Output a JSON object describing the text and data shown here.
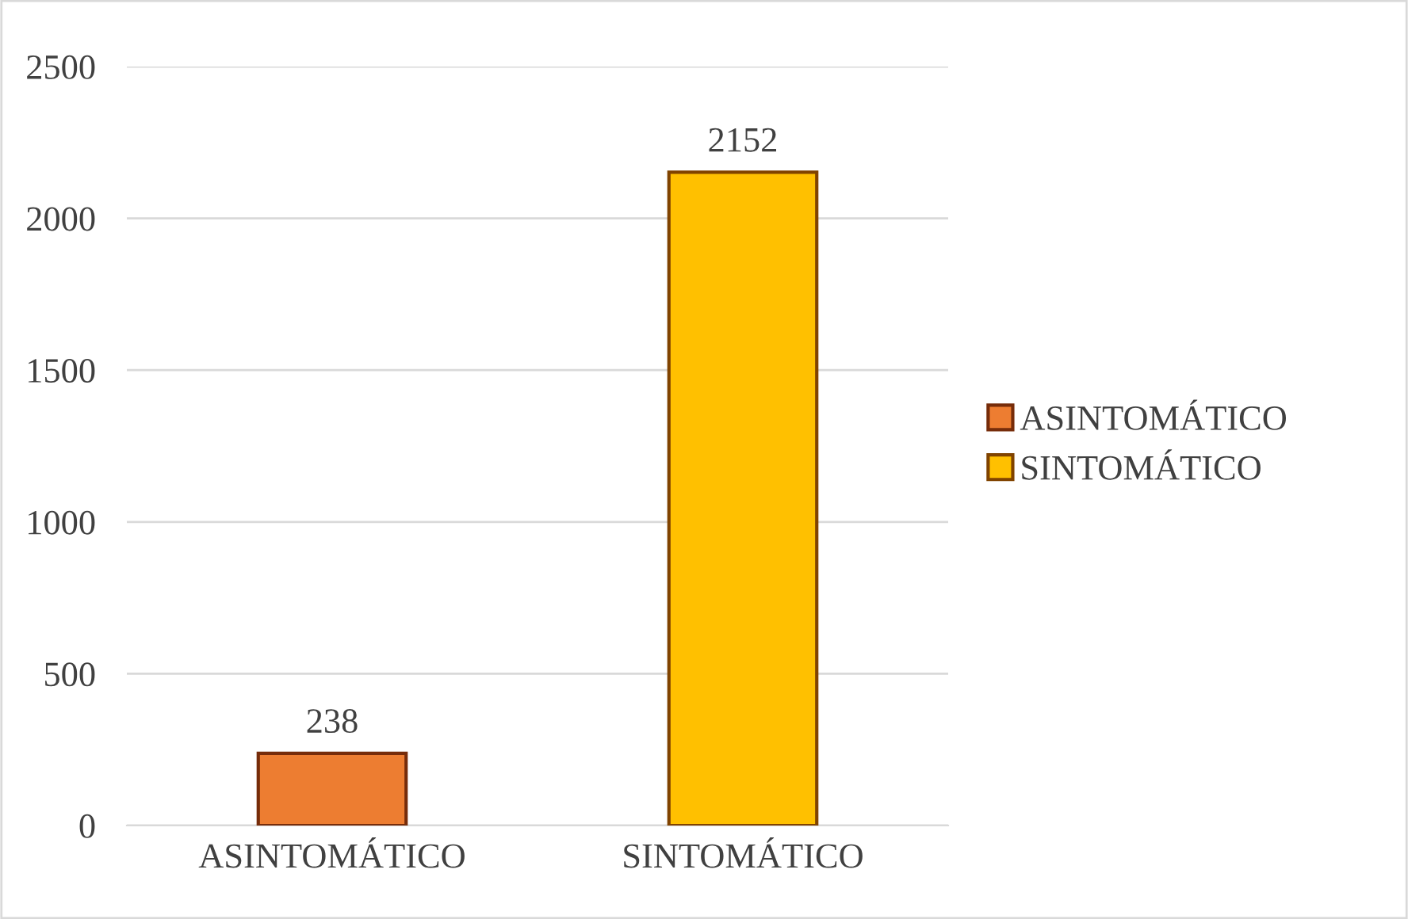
{
  "chart_data": {
    "type": "bar",
    "categories": [
      "ASINTOMÁTICO",
      "SINTOMÁTICO"
    ],
    "series": [
      {
        "name": "ASINTOMÁTICO",
        "color": "#ed7d31",
        "values": [
          238,
          null
        ]
      },
      {
        "name": "SINTOMÁTICO",
        "color": "#ffc000",
        "values": [
          null,
          2152
        ]
      }
    ],
    "ylim": [
      0,
      2500
    ],
    "yticks": [
      0,
      500,
      1000,
      1500,
      2000,
      2500
    ],
    "grid": "y",
    "legend": "right",
    "data_labels": true
  }
}
